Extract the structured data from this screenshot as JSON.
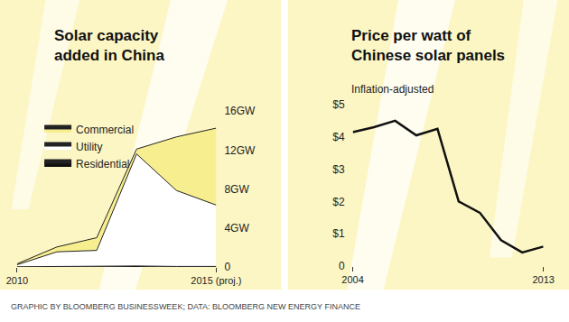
{
  "footer": "GRAPHIC BY BLOOMBERG BUSINESSWEEK; DATA: BLOOMBERG NEW ENERGY FINANCE",
  "chart_data": [
    {
      "type": "area",
      "title": "Solar capacity added in China",
      "stacked": true,
      "x": [
        2010,
        2011,
        2012,
        2013,
        2014,
        2015
      ],
      "series": [
        {
          "name": "Residential",
          "color": "#111111",
          "values": [
            0.02,
            0.05,
            0.1,
            0.1,
            0.05,
            0.05
          ]
        },
        {
          "name": "Utility",
          "color": "#ffffff",
          "values": [
            0.2,
            1.5,
            1.6,
            11.5,
            7.8,
            6.3
          ]
        },
        {
          "name": "Commercial",
          "color": "#f7ef8f",
          "values": [
            0.1,
            0.5,
            1.3,
            0.5,
            5.5,
            7.9
          ]
        }
      ],
      "xlim": [
        2010,
        2015
      ],
      "xticks": [
        2010,
        {
          "value": 2015,
          "label": "2015 (proj.)"
        }
      ],
      "ylim": [
        0,
        16
      ],
      "yticks": [
        0,
        {
          "value": 4,
          "label": "4GW"
        },
        {
          "value": 8,
          "label": "8GW"
        },
        {
          "value": 12,
          "label": "12GW"
        },
        {
          "value": 16,
          "label": "16GW"
        }
      ],
      "grid": false,
      "legend": "upper left"
    },
    {
      "type": "line",
      "title": "Price per watt of Chinese solar panels",
      "subtitle": "Inflation-adjusted",
      "x": [
        2004,
        2005,
        2006,
        2007,
        2008,
        2009,
        2010,
        2011,
        2012,
        2013
      ],
      "values": [
        4.15,
        4.3,
        4.5,
        4.05,
        4.25,
        2.0,
        1.65,
        0.8,
        0.42,
        0.6
      ],
      "color": "#111111",
      "xlim": [
        2004,
        2013
      ],
      "xticks": [
        2004,
        2013
      ],
      "ylim": [
        0,
        5
      ],
      "yticks": [
        0,
        {
          "value": 1,
          "label": "$1"
        },
        {
          "value": 2,
          "label": "$2"
        },
        {
          "value": 3,
          "label": "$3"
        },
        {
          "value": 4,
          "label": "$4"
        },
        {
          "value": 5,
          "label": "$5"
        }
      ],
      "grid": false
    }
  ]
}
